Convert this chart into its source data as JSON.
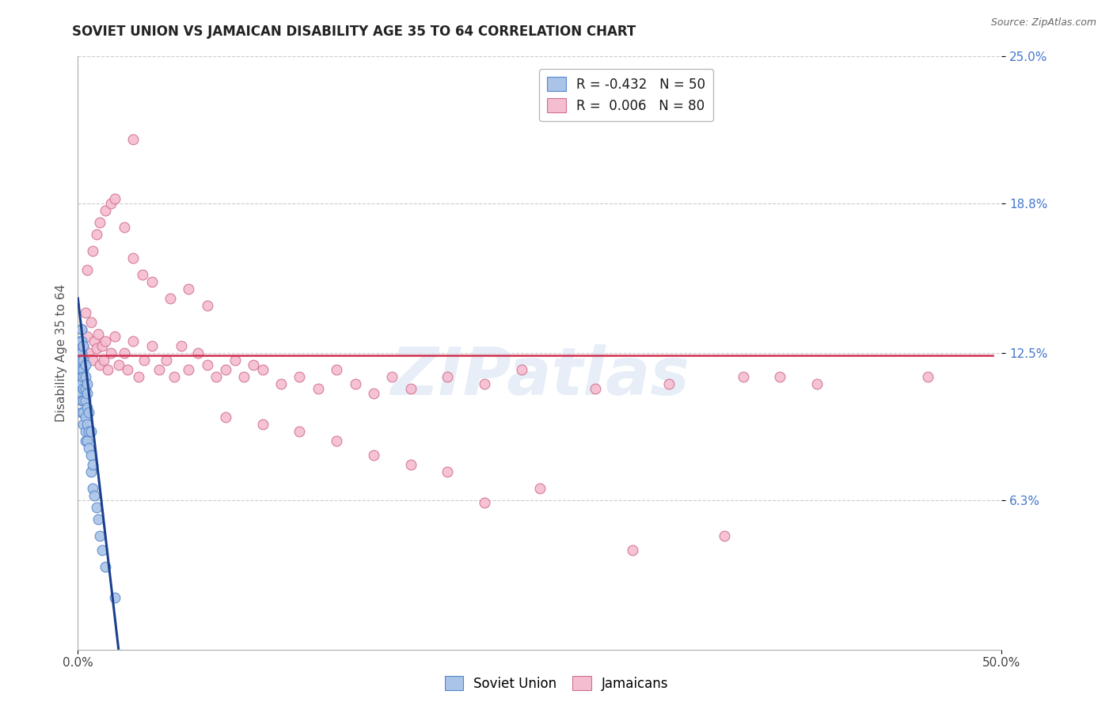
{
  "title": "SOVIET UNION VS JAMAICAN DISABILITY AGE 35 TO 64 CORRELATION CHART",
  "source_text": "Source: ZipAtlas.com",
  "ylabel": "Disability Age 35 to 64",
  "xlim": [
    0.0,
    0.5
  ],
  "ylim": [
    0.0,
    0.25
  ],
  "xtick_vals": [
    0.0,
    0.5
  ],
  "xtick_labels": [
    "0.0%",
    "50.0%"
  ],
  "ytick_vals": [
    0.063,
    0.125,
    0.188,
    0.25
  ],
  "ytick_labels": [
    "6.3%",
    "12.5%",
    "18.8%",
    "25.0%"
  ],
  "watermark": "ZIPatlas",
  "legend_r1": "R = -0.432",
  "legend_n1": "N = 50",
  "legend_r2": "R =  0.006",
  "legend_n2": "N = 80",
  "soviet_color": "#aac4e8",
  "soviet_edge_color": "#5588cc",
  "soviet_line_color": "#1a3f8c",
  "jamaican_color": "#f5bdd0",
  "jamaican_edge_color": "#d07090",
  "jamaican_line_color": "#d03050",
  "soviet_x": [
    0.001,
    0.001,
    0.001,
    0.001,
    0.001,
    0.002,
    0.002,
    0.002,
    0.002,
    0.002,
    0.002,
    0.002,
    0.002,
    0.002,
    0.002,
    0.003,
    0.003,
    0.003,
    0.003,
    0.003,
    0.003,
    0.003,
    0.003,
    0.004,
    0.004,
    0.004,
    0.004,
    0.004,
    0.004,
    0.004,
    0.005,
    0.005,
    0.005,
    0.005,
    0.005,
    0.006,
    0.006,
    0.006,
    0.007,
    0.007,
    0.007,
    0.008,
    0.008,
    0.009,
    0.01,
    0.011,
    0.012,
    0.013,
    0.015,
    0.02
  ],
  "soviet_y": [
    0.13,
    0.125,
    0.12,
    0.115,
    0.11,
    0.135,
    0.13,
    0.125,
    0.122,
    0.118,
    0.115,
    0.112,
    0.108,
    0.105,
    0.1,
    0.128,
    0.122,
    0.118,
    0.115,
    0.11,
    0.105,
    0.1,
    0.095,
    0.12,
    0.115,
    0.11,
    0.105,
    0.098,
    0.092,
    0.088,
    0.112,
    0.108,
    0.102,
    0.095,
    0.088,
    0.1,
    0.092,
    0.085,
    0.092,
    0.082,
    0.075,
    0.078,
    0.068,
    0.065,
    0.06,
    0.055,
    0.048,
    0.042,
    0.035,
    0.022
  ],
  "jamaican_x": [
    0.002,
    0.003,
    0.004,
    0.005,
    0.006,
    0.007,
    0.008,
    0.009,
    0.01,
    0.011,
    0.012,
    0.013,
    0.014,
    0.015,
    0.016,
    0.018,
    0.02,
    0.022,
    0.025,
    0.027,
    0.03,
    0.033,
    0.036,
    0.04,
    0.044,
    0.048,
    0.052,
    0.056,
    0.06,
    0.065,
    0.07,
    0.075,
    0.08,
    0.085,
    0.09,
    0.095,
    0.1,
    0.11,
    0.12,
    0.13,
    0.14,
    0.15,
    0.16,
    0.17,
    0.18,
    0.2,
    0.22,
    0.24,
    0.28,
    0.32,
    0.36,
    0.4,
    0.46,
    0.005,
    0.008,
    0.01,
    0.012,
    0.015,
    0.018,
    0.02,
    0.025,
    0.03,
    0.035,
    0.04,
    0.05,
    0.06,
    0.07,
    0.08,
    0.1,
    0.12,
    0.14,
    0.16,
    0.18,
    0.2,
    0.22,
    0.25,
    0.3,
    0.35,
    0.03,
    0.38
  ],
  "jamaican_y": [
    0.135,
    0.128,
    0.142,
    0.132,
    0.125,
    0.138,
    0.122,
    0.13,
    0.127,
    0.133,
    0.12,
    0.128,
    0.122,
    0.13,
    0.118,
    0.125,
    0.132,
    0.12,
    0.125,
    0.118,
    0.13,
    0.115,
    0.122,
    0.128,
    0.118,
    0.122,
    0.115,
    0.128,
    0.118,
    0.125,
    0.12,
    0.115,
    0.118,
    0.122,
    0.115,
    0.12,
    0.118,
    0.112,
    0.115,
    0.11,
    0.118,
    0.112,
    0.108,
    0.115,
    0.11,
    0.115,
    0.112,
    0.118,
    0.11,
    0.112,
    0.115,
    0.112,
    0.115,
    0.16,
    0.168,
    0.175,
    0.18,
    0.185,
    0.188,
    0.19,
    0.178,
    0.165,
    0.158,
    0.155,
    0.148,
    0.152,
    0.145,
    0.098,
    0.095,
    0.092,
    0.088,
    0.082,
    0.078,
    0.075,
    0.062,
    0.068,
    0.042,
    0.048,
    0.215,
    0.115
  ],
  "soviet_line_x0": 0.0,
  "soviet_line_y0": 0.148,
  "soviet_line_x1": 0.022,
  "soviet_line_y1": 0.0,
  "jamaican_line_y": 0.124,
  "bg_color": "#ffffff",
  "grid_color": "#cccccc",
  "spine_color": "#aaaaaa",
  "title_fontsize": 12,
  "tick_fontsize": 11,
  "source_fontsize": 9,
  "ylabel_fontsize": 11,
  "watermark_fontsize": 60,
  "watermark_color": "#dde8f5",
  "watermark_alpha": 0.7
}
